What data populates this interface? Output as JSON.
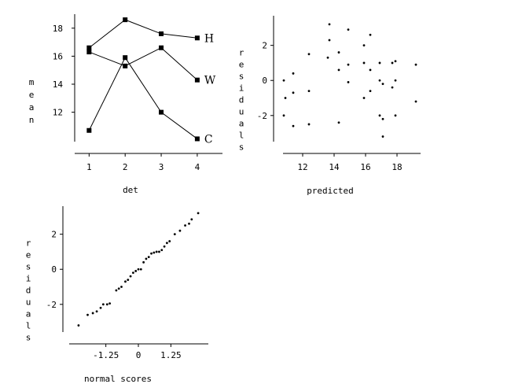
{
  "chart_data": [
    {
      "type": "line",
      "xlabel": "det",
      "ylabel": "mean",
      "x": [
        1,
        2,
        3,
        4
      ],
      "x_ticks": [
        "1",
        "2",
        "3",
        "4"
      ],
      "y_ticks": [
        "12",
        "14",
        "16",
        "18"
      ],
      "xlim": [
        0.6,
        4.7
      ],
      "ylim": [
        9.9,
        19.0
      ],
      "series": [
        {
          "name": "H",
          "values": [
            16.6,
            18.6,
            17.6,
            17.3
          ]
        },
        {
          "name": "W",
          "values": [
            16.3,
            15.3,
            16.6,
            14.3
          ]
        },
        {
          "name": "C",
          "values": [
            10.7,
            15.9,
            12.0,
            10.1
          ]
        }
      ]
    },
    {
      "type": "scatter",
      "xlabel": "predicted",
      "ylabel": "residuals",
      "x_ticks": [
        "12",
        "14",
        "16",
        "18"
      ],
      "y_ticks": [
        "2",
        "0",
        "-2"
      ],
      "xlim": [
        10.8,
        19.3
      ],
      "ylim": [
        -3.4,
        3.6
      ],
      "points": [
        [
          10.8,
          0.0
        ],
        [
          10.9,
          -1.0
        ],
        [
          10.8,
          -2.0
        ],
        [
          11.4,
          0.4
        ],
        [
          11.4,
          -0.7
        ],
        [
          11.4,
          -2.6
        ],
        [
          12.4,
          1.5
        ],
        [
          12.4,
          -0.6
        ],
        [
          12.4,
          -2.5
        ],
        [
          13.7,
          3.2
        ],
        [
          13.7,
          2.3
        ],
        [
          13.6,
          1.3
        ],
        [
          14.3,
          1.6
        ],
        [
          14.3,
          0.6
        ],
        [
          14.3,
          -2.4
        ],
        [
          14.9,
          2.9
        ],
        [
          14.9,
          0.9
        ],
        [
          14.9,
          -0.1
        ],
        [
          15.9,
          2.0
        ],
        [
          15.9,
          1.0
        ],
        [
          15.9,
          -1.0
        ],
        [
          16.3,
          2.6
        ],
        [
          16.3,
          0.6
        ],
        [
          16.3,
          -0.6
        ],
        [
          16.9,
          1.0
        ],
        [
          16.9,
          0.0
        ],
        [
          16.9,
          -2.0
        ],
        [
          17.1,
          -0.2
        ],
        [
          17.1,
          -2.2
        ],
        [
          17.1,
          -3.2
        ],
        [
          17.7,
          1.0
        ],
        [
          17.7,
          -0.4
        ],
        [
          17.9,
          1.1
        ],
        [
          17.9,
          0.0
        ],
        [
          17.9,
          -2.0
        ],
        [
          19.2,
          0.9
        ],
        [
          19.2,
          -1.2
        ]
      ]
    },
    {
      "type": "scatter",
      "xlabel": "normal scores",
      "ylabel": "residuals",
      "x_ticks": [
        "-1.25",
        "0",
        "1.25"
      ],
      "y_ticks": [
        "2",
        "0",
        "-2"
      ],
      "xlim": [
        -2.6,
        2.6
      ],
      "ylim": [
        -3.4,
        3.6
      ],
      "points": [
        [
          -2.3,
          -3.2
        ],
        [
          -1.95,
          -2.6
        ],
        [
          -1.75,
          -2.5
        ],
        [
          -1.6,
          -2.4
        ],
        [
          -1.45,
          -2.2
        ],
        [
          -1.35,
          -2.0
        ],
        [
          -1.2,
          -2.0
        ],
        [
          -1.1,
          -1.95
        ],
        [
          -0.85,
          -1.2
        ],
        [
          -0.75,
          -1.1
        ],
        [
          -0.65,
          -1.0
        ],
        [
          -0.5,
          -0.7
        ],
        [
          -0.4,
          -0.6
        ],
        [
          -0.3,
          -0.4
        ],
        [
          -0.2,
          -0.2
        ],
        [
          -0.1,
          -0.1
        ],
        [
          0.0,
          0.0
        ],
        [
          0.1,
          0.0
        ],
        [
          0.2,
          0.4
        ],
        [
          0.3,
          0.6
        ],
        [
          0.4,
          0.7
        ],
        [
          0.5,
          0.9
        ],
        [
          0.6,
          0.95
        ],
        [
          0.7,
          1.0
        ],
        [
          0.8,
          1.0
        ],
        [
          0.9,
          1.1
        ],
        [
          1.0,
          1.3
        ],
        [
          1.1,
          1.5
        ],
        [
          1.2,
          1.6
        ],
        [
          1.4,
          2.0
        ],
        [
          1.6,
          2.2
        ],
        [
          1.8,
          2.5
        ],
        [
          1.95,
          2.6
        ],
        [
          2.05,
          2.85
        ],
        [
          2.3,
          3.2
        ]
      ]
    }
  ]
}
